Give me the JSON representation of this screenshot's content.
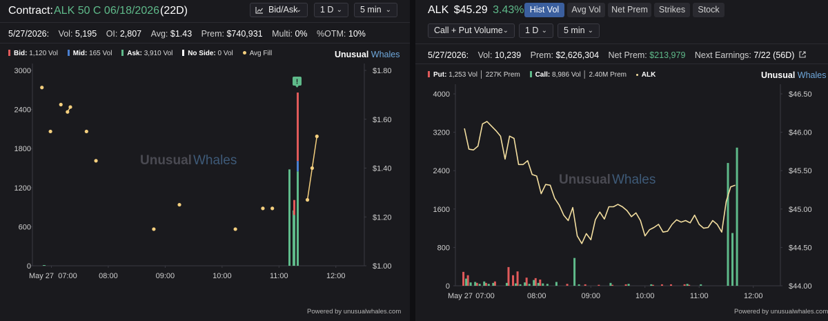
{
  "left": {
    "contract_label": "Contract:",
    "contract_name": "ALK 50 C 06/18/2026",
    "dte": "(22D)",
    "chart_type_select": "Bid/Ask",
    "period_select": "1 D",
    "interval_select": "5 min",
    "stats": {
      "date": "5/27/2026:",
      "vol_label": "Vol:",
      "vol": "5,195",
      "oi_label": "OI:",
      "oi": "2,807",
      "avg_label": "Avg:",
      "avg": "$1.43",
      "prem_label": "Prem:",
      "prem": "$740,931",
      "multi_label": "Multi:",
      "multi": "0%",
      "otm_label": "%OTM:",
      "otm": "10%"
    },
    "legend": {
      "bid_label": "Bid:",
      "bid_value": "1,120 Vol",
      "mid_label": "Mid:",
      "mid_value": "165 Vol",
      "ask_label": "Ask:",
      "ask_value": "3,910 Vol",
      "noside_label": "No Side:",
      "noside_value": "0 Vol",
      "avgfill_label": "Avg Fill"
    },
    "brand_a": "Unusual",
    "brand_b": "Whales",
    "watermark_a": "Unusual",
    "watermark_b": "Whales",
    "alert_marker": "!",
    "footer": "Powered by unusualwhales.com"
  },
  "right": {
    "ticker": "ALK",
    "price": "$45.29",
    "change": "3.43%",
    "tabs": [
      "Hist Vol",
      "Avg Vol",
      "Net Prem",
      "Strikes",
      "Stock"
    ],
    "volume_select": "Call + Put Volume",
    "period_select": "1 D",
    "interval_select": "5 min",
    "stats": {
      "date": "5/27/2026:",
      "vol_label": "Vol:",
      "vol": "10,239",
      "prem_label": "Prem:",
      "prem": "$2,626,304",
      "netprem_label": "Net Prem:",
      "netprem": "$213,979",
      "earnings_label": "Next Earnings:",
      "earnings": "7/22 (56D)"
    },
    "legend": {
      "put_label": "Put:",
      "put_value": "1,253 Vol │ 227K Prem",
      "call_label": "Call:",
      "call_value": "8,986 Vol │ 2.40M Prem",
      "alk_label": "ALK"
    },
    "brand_a": "Unusual",
    "brand_b": "Whales",
    "watermark_a": "Unusual",
    "watermark_b": "Whales",
    "footer": "Powered by unusualwhales.com"
  },
  "colors": {
    "bid": "#e05a5a",
    "mid": "#4a7fd0",
    "ask": "#5fba8a",
    "noside": "#ffffff",
    "avgfill": "#f4cf7e",
    "call": "#5fba8a",
    "put": "#e05a5a",
    "alk_line": "#f4dfa0",
    "green_text": "#5fba8a",
    "accent_blue": "#3b5f9e"
  },
  "chart_data": [
    {
      "type": "bar",
      "y_left_ticks": [
        "3000",
        "2400",
        "1800",
        "1200",
        "600",
        "0"
      ],
      "y_right_ticks": [
        "$1.80",
        "$1.60",
        "$1.40",
        "$1.20",
        "$1.00"
      ],
      "x_ticks": [
        "May 27",
        "07:00",
        "08:00",
        "09:00",
        "10:00",
        "11:00",
        "12:00"
      ],
      "ylim": [
        0,
        3000
      ],
      "ylim_right": [
        1.0,
        1.8
      ],
      "grid": false,
      "stack_bars": [
        {
          "time": "11:30",
          "ask": 1480,
          "mid": 0,
          "bid": 0
        },
        {
          "time": "11:35",
          "ask": 850,
          "mid": 0,
          "bid": 0
        },
        {
          "time": "11:35",
          "ask": 780,
          "mid": 0,
          "bid": 230
        },
        {
          "time": "11:40",
          "ask": 1450,
          "mid": 160,
          "bid": 1050
        }
      ],
      "avg_fill": [
        {
          "time": "06:50",
          "y": 1.73
        },
        {
          "time": "06:59",
          "y": 1.55
        },
        {
          "time": "07:10",
          "y": 1.66
        },
        {
          "time": "07:17",
          "y": 1.63
        },
        {
          "time": "07:20",
          "y": 1.65
        },
        {
          "time": "07:37",
          "y": 1.55
        },
        {
          "time": "07:47",
          "y": 1.43
        },
        {
          "time": "08:48",
          "y": 1.15
        },
        {
          "time": "09:15",
          "y": 1.25
        },
        {
          "time": "10:14",
          "y": 1.15
        },
        {
          "time": "10:43",
          "y": 1.235
        },
        {
          "time": "10:53",
          "y": 1.235
        },
        {
          "time": "11:30",
          "y": 1.27
        },
        {
          "time": "11:35",
          "y": 1.4
        },
        {
          "time": "11:40",
          "y": 1.53
        }
      ]
    },
    {
      "type": "line",
      "y_left_ticks": [
        "4000",
        "3200",
        "2400",
        "1600",
        "800",
        "0"
      ],
      "y_right_ticks": [
        "$46.50",
        "$46.00",
        "$45.50",
        "$45.00",
        "$44.50",
        "$44.00"
      ],
      "x_ticks": [
        "May 27",
        "07:00",
        "08:00",
        "09:00",
        "10:00",
        "11:00",
        "12:00"
      ],
      "ylim": [
        0,
        4000
      ],
      "ylim_right": [
        44.0,
        46.5
      ],
      "grid": false,
      "call_volume": [
        {
          "time": "06:40",
          "v": 150
        },
        {
          "time": "06:45",
          "v": 70
        },
        {
          "time": "06:50",
          "v": 80
        },
        {
          "time": "06:55",
          "v": 40
        },
        {
          "time": "07:00",
          "v": 90
        },
        {
          "time": "07:05",
          "v": 40
        },
        {
          "time": "07:10",
          "v": 60
        },
        {
          "time": "07:25",
          "v": 60
        },
        {
          "time": "07:35",
          "v": 50
        },
        {
          "time": "07:40",
          "v": 30
        },
        {
          "time": "07:45",
          "v": 70
        },
        {
          "time": "07:50",
          "v": 40
        },
        {
          "time": "07:55",
          "v": 120
        },
        {
          "time": "08:00",
          "v": 60
        },
        {
          "time": "08:05",
          "v": 50
        },
        {
          "time": "08:10",
          "v": 40
        },
        {
          "time": "08:20",
          "v": 80
        },
        {
          "time": "08:40",
          "v": 580
        },
        {
          "time": "08:45",
          "v": 30
        },
        {
          "time": "09:20",
          "v": 60
        },
        {
          "time": "09:40",
          "v": 40
        },
        {
          "time": "10:05",
          "v": 30
        },
        {
          "time": "10:45",
          "v": 40
        },
        {
          "time": "11:00",
          "v": 30
        },
        {
          "time": "11:30",
          "v": 2560
        },
        {
          "time": "11:35",
          "v": 1100
        },
        {
          "time": "11:40",
          "v": 2880
        }
      ],
      "put_volume": [
        {
          "time": "06:40",
          "v": 290
        },
        {
          "time": "06:45",
          "v": 220
        },
        {
          "time": "06:55",
          "v": 60
        },
        {
          "time": "07:05",
          "v": 60
        },
        {
          "time": "07:15",
          "v": 90
        },
        {
          "time": "07:30",
          "v": 390
        },
        {
          "time": "07:35",
          "v": 220
        },
        {
          "time": "07:40",
          "v": 300
        },
        {
          "time": "07:50",
          "v": 170
        },
        {
          "time": "08:00",
          "v": 160
        },
        {
          "time": "08:05",
          "v": 130
        },
        {
          "time": "08:35",
          "v": 40
        },
        {
          "time": "08:55",
          "v": 30
        },
        {
          "time": "09:10",
          "v": 20
        },
        {
          "time": "09:25",
          "v": 20
        },
        {
          "time": "09:40",
          "v": 30
        },
        {
          "time": "10:10",
          "v": 20
        },
        {
          "time": "10:20",
          "v": 30
        },
        {
          "time": "10:30",
          "v": 30
        },
        {
          "time": "10:45",
          "v": 30
        },
        {
          "time": "10:50",
          "v": 20
        }
      ],
      "alk_price": [
        {
          "time": "06:40",
          "y": 46.05
        },
        {
          "time": "06:45",
          "y": 45.78
        },
        {
          "time": "06:50",
          "y": 45.77
        },
        {
          "time": "06:55",
          "y": 45.82
        },
        {
          "time": "07:00",
          "y": 46.11
        },
        {
          "time": "07:05",
          "y": 46.14
        },
        {
          "time": "07:10",
          "y": 46.08
        },
        {
          "time": "07:15",
          "y": 46.02
        },
        {
          "time": "07:20",
          "y": 45.95
        },
        {
          "time": "07:25",
          "y": 45.65
        },
        {
          "time": "07:30",
          "y": 45.95
        },
        {
          "time": "07:35",
          "y": 45.92
        },
        {
          "time": "07:40",
          "y": 45.58
        },
        {
          "time": "07:45",
          "y": 45.58
        },
        {
          "time": "07:50",
          "y": 45.63
        },
        {
          "time": "07:55",
          "y": 45.45
        },
        {
          "time": "08:00",
          "y": 45.43
        },
        {
          "time": "08:05",
          "y": 45.2
        },
        {
          "time": "08:10",
          "y": 45.32
        },
        {
          "time": "08:15",
          "y": 45.31
        },
        {
          "time": "08:20",
          "y": 45.14
        },
        {
          "time": "08:25",
          "y": 45.05
        },
        {
          "time": "08:30",
          "y": 44.92
        },
        {
          "time": "08:35",
          "y": 44.85
        },
        {
          "time": "08:40",
          "y": 45.02
        },
        {
          "time": "08:45",
          "y": 44.65
        },
        {
          "time": "08:50",
          "y": 44.55
        },
        {
          "time": "08:55",
          "y": 44.68
        },
        {
          "time": "09:00",
          "y": 44.6
        },
        {
          "time": "09:05",
          "y": 44.86
        },
        {
          "time": "09:10",
          "y": 44.96
        },
        {
          "time": "09:15",
          "y": 44.87
        },
        {
          "time": "09:20",
          "y": 45.03
        },
        {
          "time": "09:25",
          "y": 45.03
        },
        {
          "time": "09:30",
          "y": 45.06
        },
        {
          "time": "09:35",
          "y": 45.03
        },
        {
          "time": "09:40",
          "y": 44.98
        },
        {
          "time": "09:45",
          "y": 44.9
        },
        {
          "time": "09:50",
          "y": 44.95
        },
        {
          "time": "09:55",
          "y": 44.85
        },
        {
          "time": "10:00",
          "y": 44.65
        },
        {
          "time": "10:05",
          "y": 44.73
        },
        {
          "time": "10:10",
          "y": 44.76
        },
        {
          "time": "10:15",
          "y": 44.8
        },
        {
          "time": "10:20",
          "y": 44.7
        },
        {
          "time": "10:25",
          "y": 44.71
        },
        {
          "time": "10:30",
          "y": 44.8
        },
        {
          "time": "10:35",
          "y": 44.86
        },
        {
          "time": "10:40",
          "y": 44.83
        },
        {
          "time": "10:45",
          "y": 44.85
        },
        {
          "time": "10:50",
          "y": 44.82
        },
        {
          "time": "10:55",
          "y": 44.92
        },
        {
          "time": "11:00",
          "y": 44.8
        },
        {
          "time": "11:05",
          "y": 44.75
        },
        {
          "time": "11:10",
          "y": 44.76
        },
        {
          "time": "11:15",
          "y": 44.85
        },
        {
          "time": "11:20",
          "y": 44.8
        },
        {
          "time": "11:25",
          "y": 44.7
        },
        {
          "time": "11:30",
          "y": 45.1
        },
        {
          "time": "11:35",
          "y": 45.29
        },
        {
          "time": "11:40",
          "y": 45.31
        }
      ]
    }
  ]
}
